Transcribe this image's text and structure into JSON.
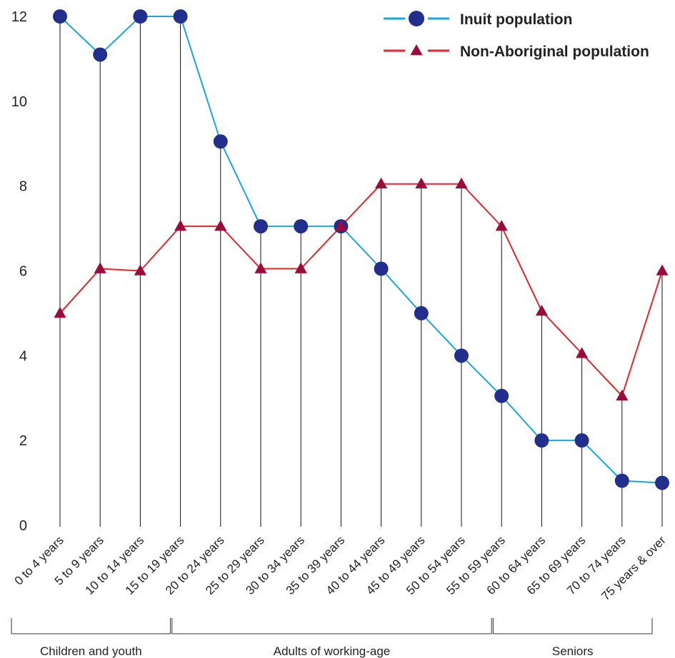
{
  "chart_data": {
    "type": "line",
    "categories": [
      "0 to 4 years",
      "5 to 9 years",
      "10 to 14 years",
      "15 to 19 years",
      "20 to 24 years",
      "25 to 29 years",
      "30 to 34 years",
      "35 to 39 years",
      "40 to 44 years",
      "45 to 49 years",
      "50 to 54 years",
      "55 to 59 years",
      "60 to 64 years",
      "65 to 69 years",
      "70 to 74 years",
      "75 years & over"
    ],
    "series": [
      {
        "name": "Inuit population",
        "color": "#1aa6dc",
        "marker": "circle",
        "marker_color": "#232f8c",
        "values": [
          12,
          11.1,
          12,
          12,
          9.05,
          7.05,
          7.05,
          7.05,
          6.05,
          5,
          4,
          3.05,
          2,
          2,
          1.05,
          1
        ]
      },
      {
        "name": "Non-Aboriginal population",
        "color": "#e2262c",
        "marker": "triangle",
        "marker_color": "#9b0b3c",
        "values": [
          5,
          6.05,
          6,
          7.05,
          7.05,
          6.05,
          6.05,
          7.05,
          8.05,
          8.05,
          8.05,
          7.05,
          5.05,
          4.05,
          3.05,
          6
        ]
      }
    ],
    "y_ticks": [
      0,
      2,
      4,
      6,
      8,
      10,
      12
    ],
    "ylim": [
      0,
      12
    ],
    "grid": false,
    "legend": "top-right",
    "groups": [
      {
        "label": "Children and youth",
        "from": 0,
        "to": 3
      },
      {
        "label": "Adults of working-age",
        "from": 4,
        "to": 11
      },
      {
        "label": "Seniors",
        "from": 12,
        "to": 15
      }
    ]
  }
}
